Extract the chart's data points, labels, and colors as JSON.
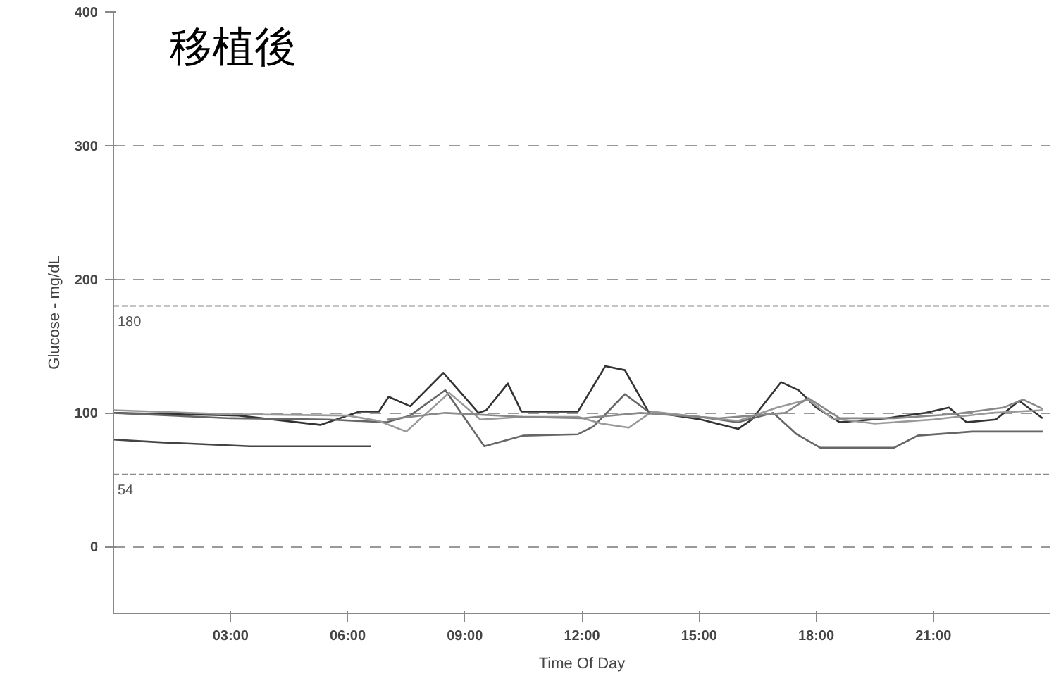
{
  "chart_data": {
    "type": "line",
    "title": "移植後",
    "xlabel": "Time Of Day",
    "ylabel": "Glucose - mg/dL",
    "xlim": [
      0,
      24
    ],
    "ylim": [
      -50,
      400
    ],
    "xticks": [
      {
        "value": 3,
        "label": "03:00"
      },
      {
        "value": 6,
        "label": "06:00"
      },
      {
        "value": 9,
        "label": "09:00"
      },
      {
        "value": 12,
        "label": "12:00"
      },
      {
        "value": 15,
        "label": "15:00"
      },
      {
        "value": 18,
        "label": "18:00"
      },
      {
        "value": 21,
        "label": "21:00"
      }
    ],
    "yticks": [
      0,
      100,
      200,
      300,
      400
    ],
    "grid": "y",
    "marker": "none",
    "line_style": "solid",
    "ref_lines": [
      {
        "axis": "y",
        "value": 180,
        "label": "180",
        "color": "#8a8a8a"
      },
      {
        "axis": "y",
        "value": 54,
        "label": "54",
        "color": "#8a8a8a"
      }
    ],
    "series": [
      {
        "color": "#333333",
        "x": [
          0,
          3.2,
          5.3,
          6.3,
          6.8,
          7.05,
          7.6,
          8.45,
          9.35,
          9.55,
          10.1,
          10.45,
          11.9,
          12.6,
          13.1,
          13.7,
          15.05,
          16.0,
          16.35,
          17.1,
          17.55,
          18.0,
          18.6,
          19.8,
          20.8,
          21.4,
          21.85,
          22.6,
          23.2,
          23.8
        ],
        "values": [
          100,
          98,
          91,
          101,
          101,
          112,
          105,
          130,
          100,
          102,
          122,
          101,
          101,
          135,
          132,
          101,
          95,
          88,
          95,
          123,
          117,
          104,
          93,
          96,
          100,
          104,
          93,
          95,
          109,
          96
        ]
      },
      {
        "color": "#666666",
        "x": [
          0,
          3,
          5.5,
          7,
          7.6,
          8.5,
          9.5,
          10.5,
          11.9,
          12.3,
          13.1,
          13.7,
          15,
          16,
          16.9,
          17.5,
          18.1,
          20,
          20.6,
          22,
          23.8
        ],
        "values": [
          100,
          96,
          95,
          93,
          98,
          117,
          75,
          83,
          84,
          90,
          114,
          101,
          97,
          93,
          100,
          84,
          74,
          74,
          83,
          86,
          86
        ]
      },
      {
        "color": "#999999",
        "x": [
          0,
          3,
          6,
          6.8,
          7.5,
          8.6,
          9.4,
          10.5,
          11.9,
          12.5,
          13.2,
          13.8,
          15,
          16,
          17,
          17.8,
          18.4,
          19.5,
          21,
          22.5,
          23.8
        ],
        "values": [
          102,
          99,
          98,
          94,
          86,
          115,
          95,
          97,
          97,
          92,
          89,
          101,
          97,
          94,
          104,
          110,
          96,
          92,
          95,
          100,
          102
        ]
      },
      {
        "color": "#444444",
        "x": [
          0,
          1.2,
          3.5,
          6.6
        ],
        "values": [
          80,
          78,
          75,
          75
        ]
      },
      {
        "color": "#888888",
        "x": [
          7,
          8.5,
          10.5,
          12,
          13.5,
          15.5,
          17.2,
          17.8,
          18.6,
          20,
          21.5,
          22.8,
          23.3,
          23.8
        ],
        "values": [
          95,
          100,
          97,
          96,
          100,
          96,
          100,
          111,
          96,
          96,
          99,
          104,
          110,
          103
        ]
      }
    ]
  }
}
